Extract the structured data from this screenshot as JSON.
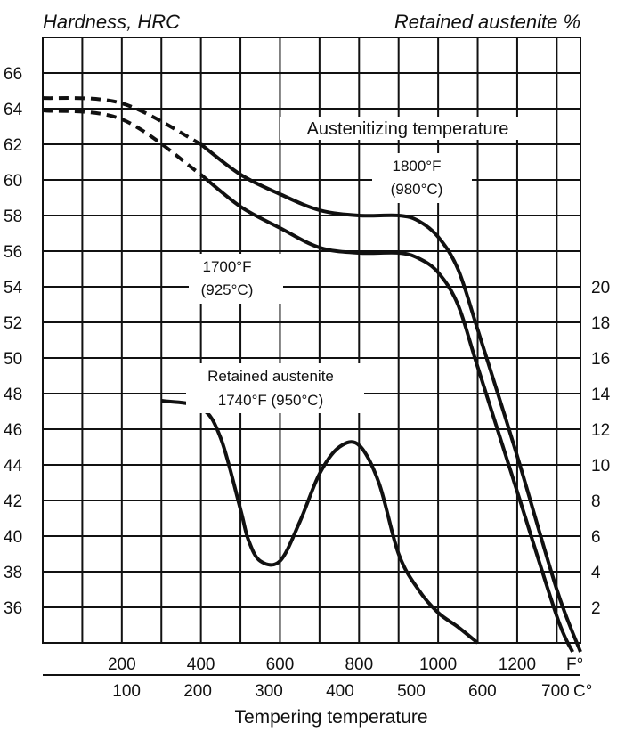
{
  "chart_data": {
    "type": "line",
    "title_left": "Hardness, HRC",
    "title_right": "Retained austenite %",
    "xlabel": "Tempering temperature",
    "x_unit_f": "F°",
    "x_unit_c": "C°",
    "x_range_f": [
      0,
      1360
    ],
    "left_axis": {
      "min": 34,
      "max": 68,
      "ticks": [
        66,
        64,
        62,
        60,
        58,
        56,
        54,
        52,
        50,
        48,
        46,
        44,
        42,
        40,
        38,
        36
      ]
    },
    "right_axis": {
      "min": 0,
      "max": 34,
      "ticks": [
        20,
        18,
        16,
        14,
        12,
        10,
        8,
        6,
        4,
        2
      ]
    },
    "f_ticks": [
      200,
      400,
      600,
      800,
      1000,
      1200
    ],
    "c_ticks": [
      100,
      200,
      300,
      400,
      500,
      600,
      700
    ],
    "annotations": {
      "austenitizing": "Austenitizing temperature",
      "t1800_f": "1800°F",
      "t1800_c": "(980°C)",
      "t1700_f": "1700°F",
      "t1700_c": "(925°C)",
      "ra_title": "Retained austenite",
      "ra_temp": "1740°F (950°C)"
    },
    "series": [
      {
        "name": "1800°F (980°C)",
        "axis": "left",
        "dashed_x": [
          0,
          200,
          400
        ],
        "dashed_y": [
          64.6,
          64.3,
          62.0
        ],
        "x": [
          400,
          500,
          600,
          700,
          800,
          900,
          950,
          1000,
          1050,
          1100,
          1200,
          1300,
          1360
        ],
        "y": [
          62.0,
          60.3,
          59.2,
          58.3,
          58.0,
          58.0,
          57.7,
          56.8,
          55.0,
          51.6,
          44.5,
          37.0,
          33.5
        ]
      },
      {
        "name": "1700°F (925°C)",
        "axis": "left",
        "dashed_x": [
          0,
          200,
          400
        ],
        "dashed_y": [
          63.9,
          63.4,
          60.3
        ],
        "x": [
          400,
          500,
          600,
          700,
          800,
          900,
          950,
          1000,
          1050,
          1100,
          1200,
          1300,
          1340
        ],
        "y": [
          60.3,
          58.5,
          57.3,
          56.2,
          55.9,
          55.9,
          55.6,
          54.8,
          53.0,
          49.5,
          42.5,
          35.5,
          33.5
        ]
      },
      {
        "name": "Retained austenite 1740°F (950°C)",
        "axis": "right",
        "x": [
          300,
          400,
          450,
          500,
          520,
          550,
          600,
          650,
          700,
          750,
          800,
          850,
          900,
          950,
          1000,
          1050,
          1100
        ],
        "y": [
          13.6,
          13.2,
          11.5,
          7.5,
          5.8,
          4.6,
          4.6,
          6.8,
          9.5,
          11.0,
          11.1,
          9.0,
          5.0,
          3.0,
          1.7,
          0.9,
          0.0
        ]
      }
    ]
  }
}
